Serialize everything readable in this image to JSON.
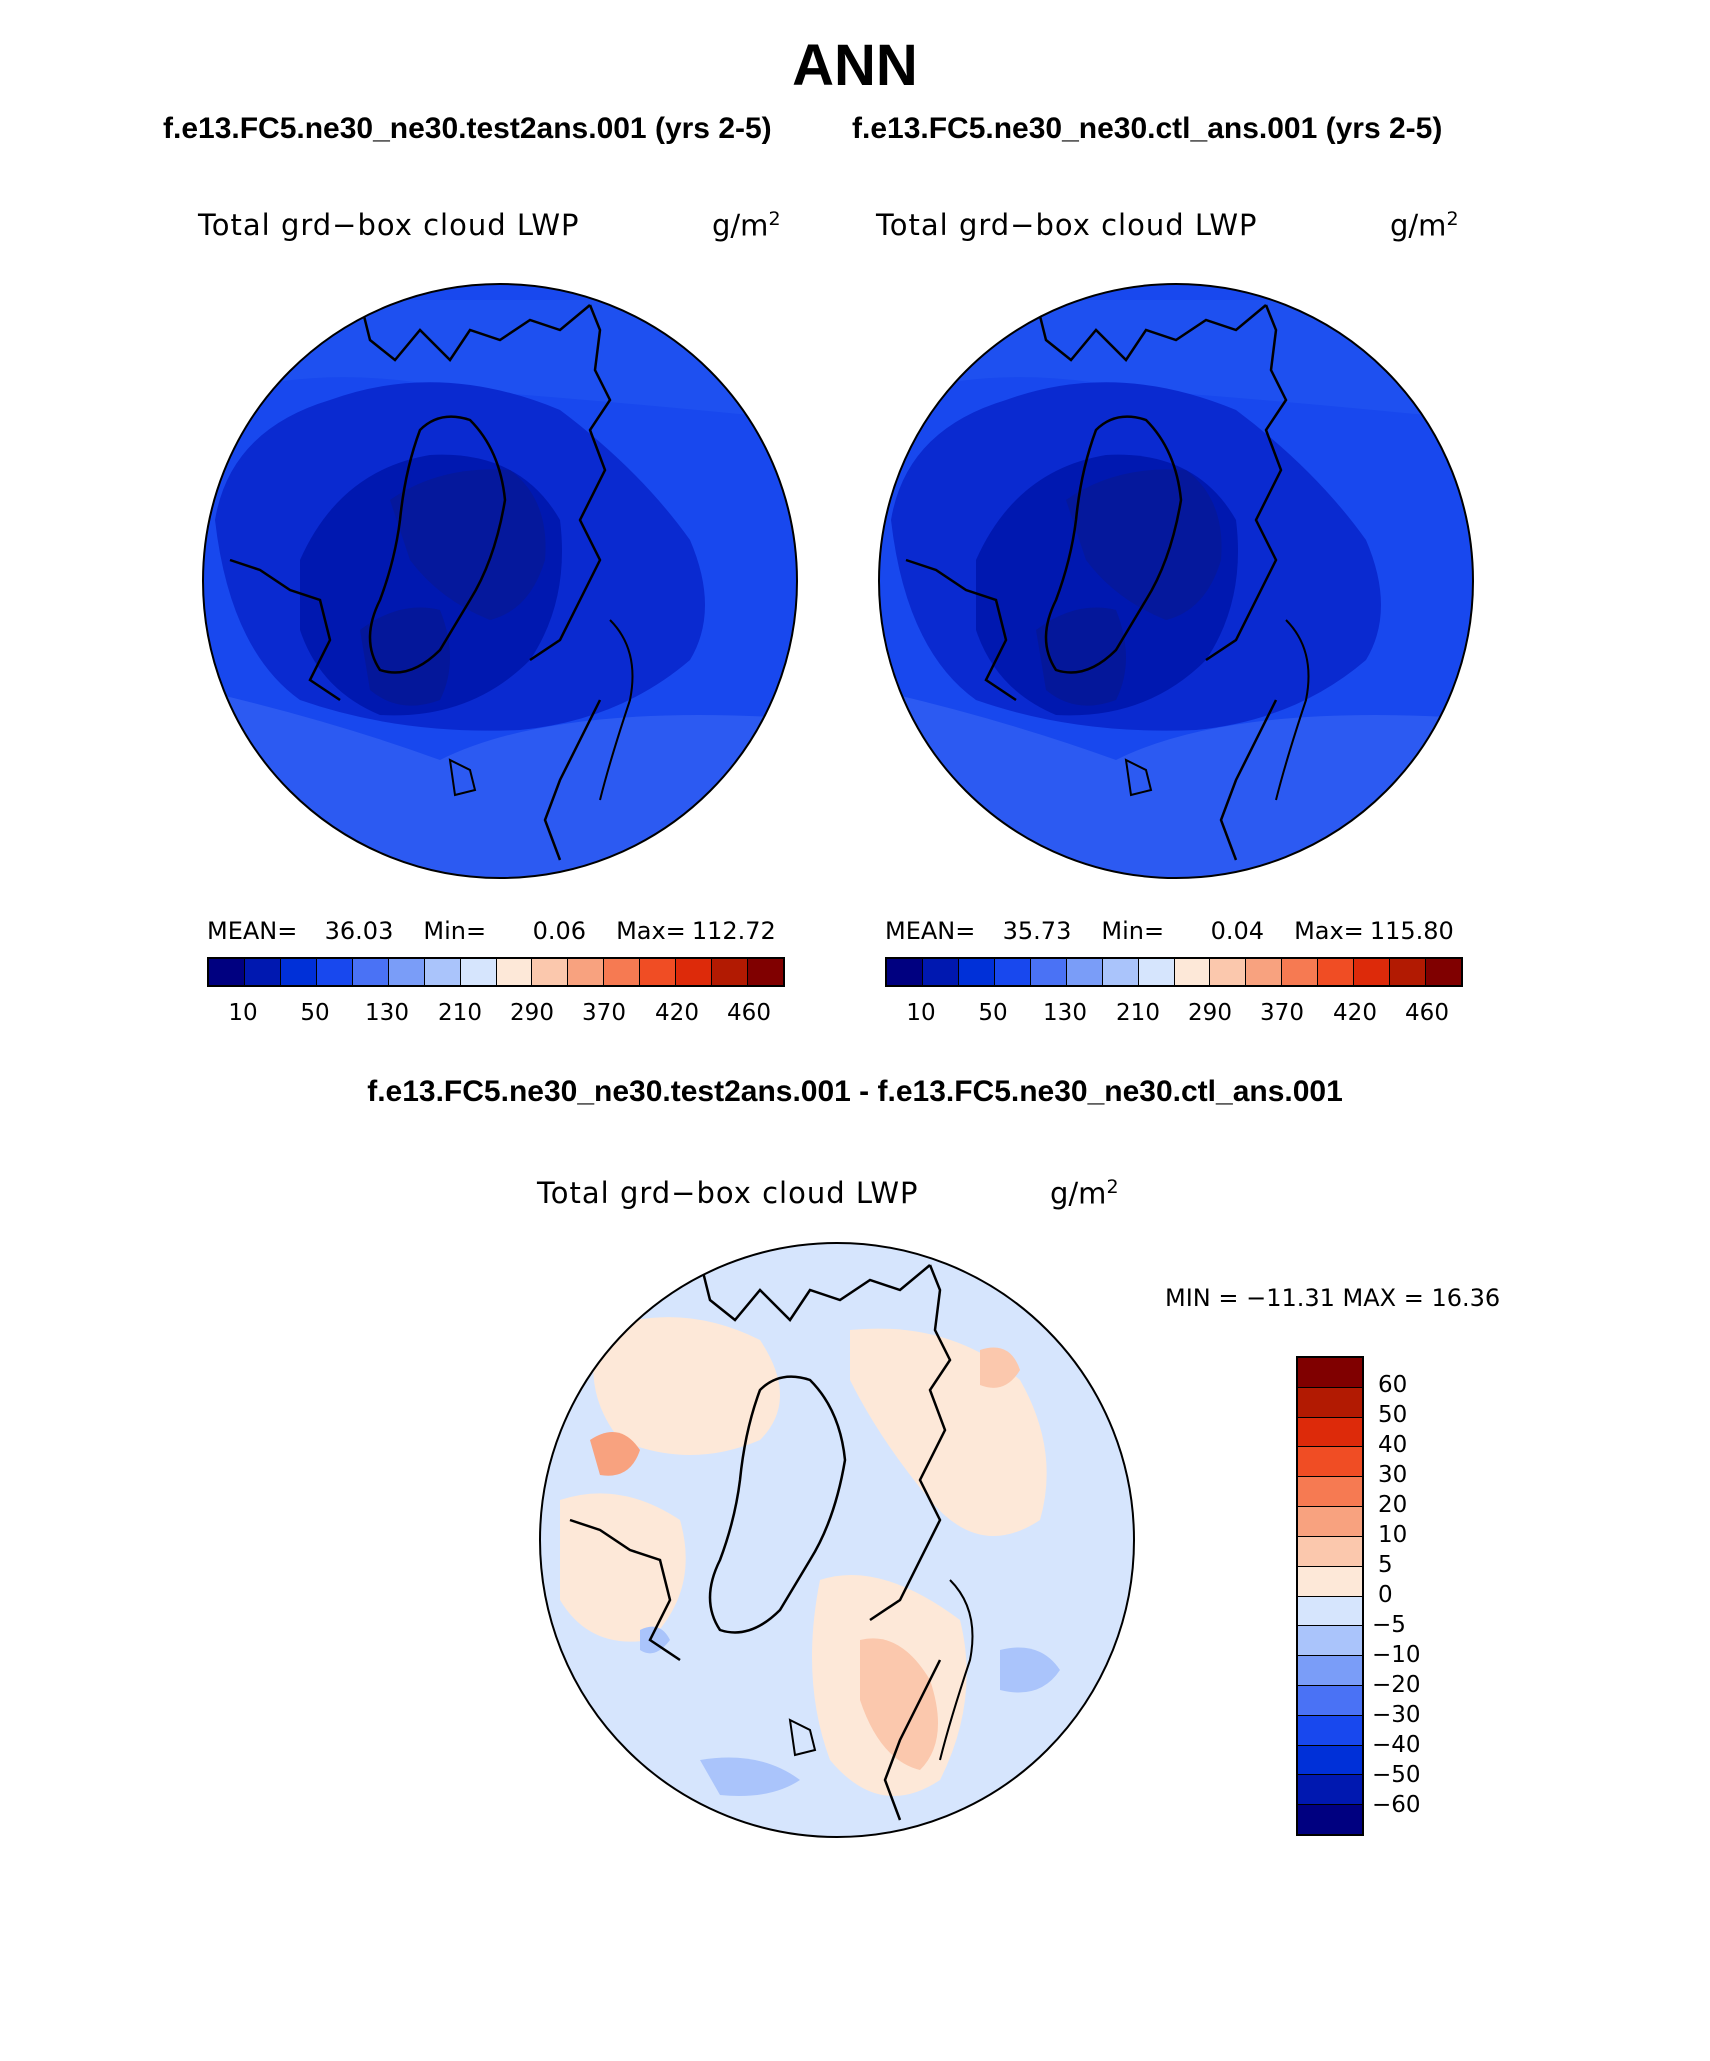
{
  "title": "ANN",
  "panels": [
    {
      "case": "f.e13.FC5.ne30_ne30.test2ans.001 (yrs 2-5)",
      "variable": "Total grd−box cloud LWP",
      "units": "g/m",
      "units_sup": "2",
      "stats": {
        "mean_label": "MEAN=",
        "mean": "36.03",
        "min_label": "Min=",
        "min": "0.06",
        "max_label": "Max=",
        "max": "112.72"
      }
    },
    {
      "case": "f.e13.FC5.ne30_ne30.ctl_ans.001 (yrs 2-5)",
      "variable": "Total grd−box cloud LWP",
      "units": "g/m",
      "units_sup": "2",
      "stats": {
        "mean_label": "MEAN=",
        "mean": "35.73",
        "min_label": "Min=",
        "min": "0.04",
        "max_label": "Max=",
        "max": "115.80"
      }
    }
  ],
  "abs_colorbar": {
    "colors": [
      "#000080",
      "#0018b0",
      "#0030d8",
      "#1848ee",
      "#4a72f5",
      "#7a9df8",
      "#aac4fb",
      "#d6e5fd",
      "#fde8d8",
      "#fbc8ad",
      "#f8a27f",
      "#f67a52",
      "#f04d24",
      "#dd2a0a",
      "#b21a02",
      "#800000"
    ],
    "tick_labels": [
      "10",
      "50",
      "130",
      "210",
      "290",
      "370",
      "420",
      "460"
    ]
  },
  "diff": {
    "title": "f.e13.FC5.ne30_ne30.test2ans.001 - f.e13.FC5.ne30_ne30.ctl_ans.001",
    "variable": "Total grd−box cloud LWP",
    "units": "g/m",
    "units_sup": "2",
    "minmax_text": "MIN = −11.31 MAX =  16.36",
    "colorbar": {
      "colors_top_to_bottom": [
        "#800000",
        "#b21a02",
        "#dd2a0a",
        "#f04d24",
        "#f67a52",
        "#f8a27f",
        "#fbc8ad",
        "#fde8d8",
        "#d6e5fd",
        "#aac4fb",
        "#7a9df8",
        "#4a72f5",
        "#1848ee",
        "#0030d8",
        "#0018b0",
        "#000080"
      ],
      "tick_labels": [
        "60",
        "50",
        "40",
        "30",
        "20",
        "10",
        "5",
        "0",
        "−5",
        "−10",
        "−20",
        "−30",
        "−40",
        "−50",
        "−60"
      ]
    }
  }
}
